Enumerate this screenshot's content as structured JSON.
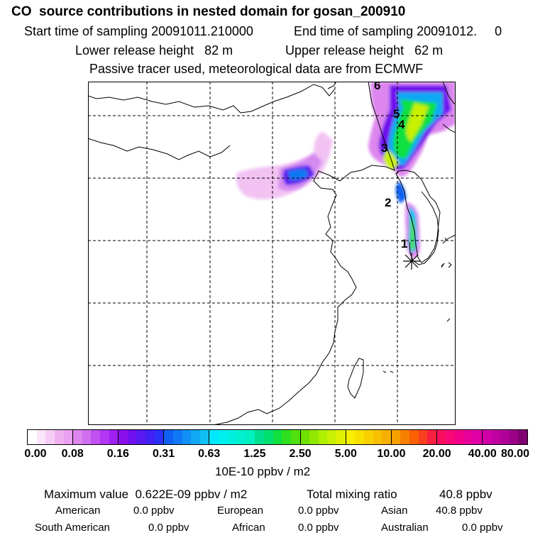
{
  "header": {
    "title": "CO  source contributions in nested domain for gosan_200910",
    "start_label": "Start time of sampling 20091011.210000",
    "end_label": "End time of sampling 20091012.     0",
    "lower_label": "Lower release height   82 m",
    "upper_label": "Upper release height   62 m",
    "tracer_label": "Passive tracer used, meteorological data are from ECMWF"
  },
  "map": {
    "trajectory_labels": [
      "1",
      "2",
      "3",
      "4",
      "5",
      "6"
    ],
    "receptor_symbol": "receptor-star-icon"
  },
  "colorbar": {
    "ticks": [
      "0.00",
      "0.08",
      "0.16",
      "0.31",
      "0.63",
      "1.25",
      "2.50",
      "5.00",
      "10.00",
      "20.00",
      "40.00",
      "80.00"
    ],
    "unit": "10E-10 ppbv / m2",
    "segments": [
      [
        "#ffffff",
        "#fbe6fb",
        "#f6ccf6",
        "#f0b0f0",
        "#eaa0f0"
      ],
      [
        "#dc86ee",
        "#d070ef",
        "#c050f0",
        "#b236f2",
        "#a020f0"
      ],
      [
        "#8a10ee",
        "#7010ee",
        "#5a18f0",
        "#4020f4",
        "#2a30f8"
      ],
      [
        "#1060f4",
        "#1078f4",
        "#1090f4",
        "#10a8f4",
        "#10c0f4"
      ],
      [
        "#00e8ff",
        "#00f0f0",
        "#00f0e0",
        "#00f0d0",
        "#00f0c0"
      ],
      [
        "#00e090",
        "#00e070",
        "#10e040",
        "#30e020",
        "#50e010"
      ],
      [
        "#70e000",
        "#90e800",
        "#aef000",
        "#c8f000",
        "#e0f000"
      ],
      [
        "#f8f000",
        "#f8e000",
        "#f8d000",
        "#f8c000",
        "#f8b000"
      ],
      [
        "#f8a000",
        "#f88000",
        "#f86000",
        "#f84020",
        "#f82040"
      ],
      [
        "#f81060",
        "#f80878",
        "#f0008a",
        "#e8009a",
        "#e000a8"
      ],
      [
        "#d000a8",
        "#c000a0",
        "#b00098",
        "#9a0088",
        "#800070"
      ]
    ]
  },
  "summary": {
    "max_label": "Maximum value  0.622E-09 ppbv / m2",
    "total_label": "Total mixing ratio",
    "total_value": "40.8 ppbv",
    "regions": [
      {
        "name": "American",
        "value": "0.0 ppbv"
      },
      {
        "name": "European",
        "value": "0.0 ppbv"
      },
      {
        "name": "Asian",
        "value": "40.8 ppbv"
      },
      {
        "name": "South American",
        "value": "0.0 ppbv"
      },
      {
        "name": "African",
        "value": "0.0 ppbv"
      },
      {
        "name": "Australian",
        "value": "0.0 ppbv"
      }
    ]
  }
}
